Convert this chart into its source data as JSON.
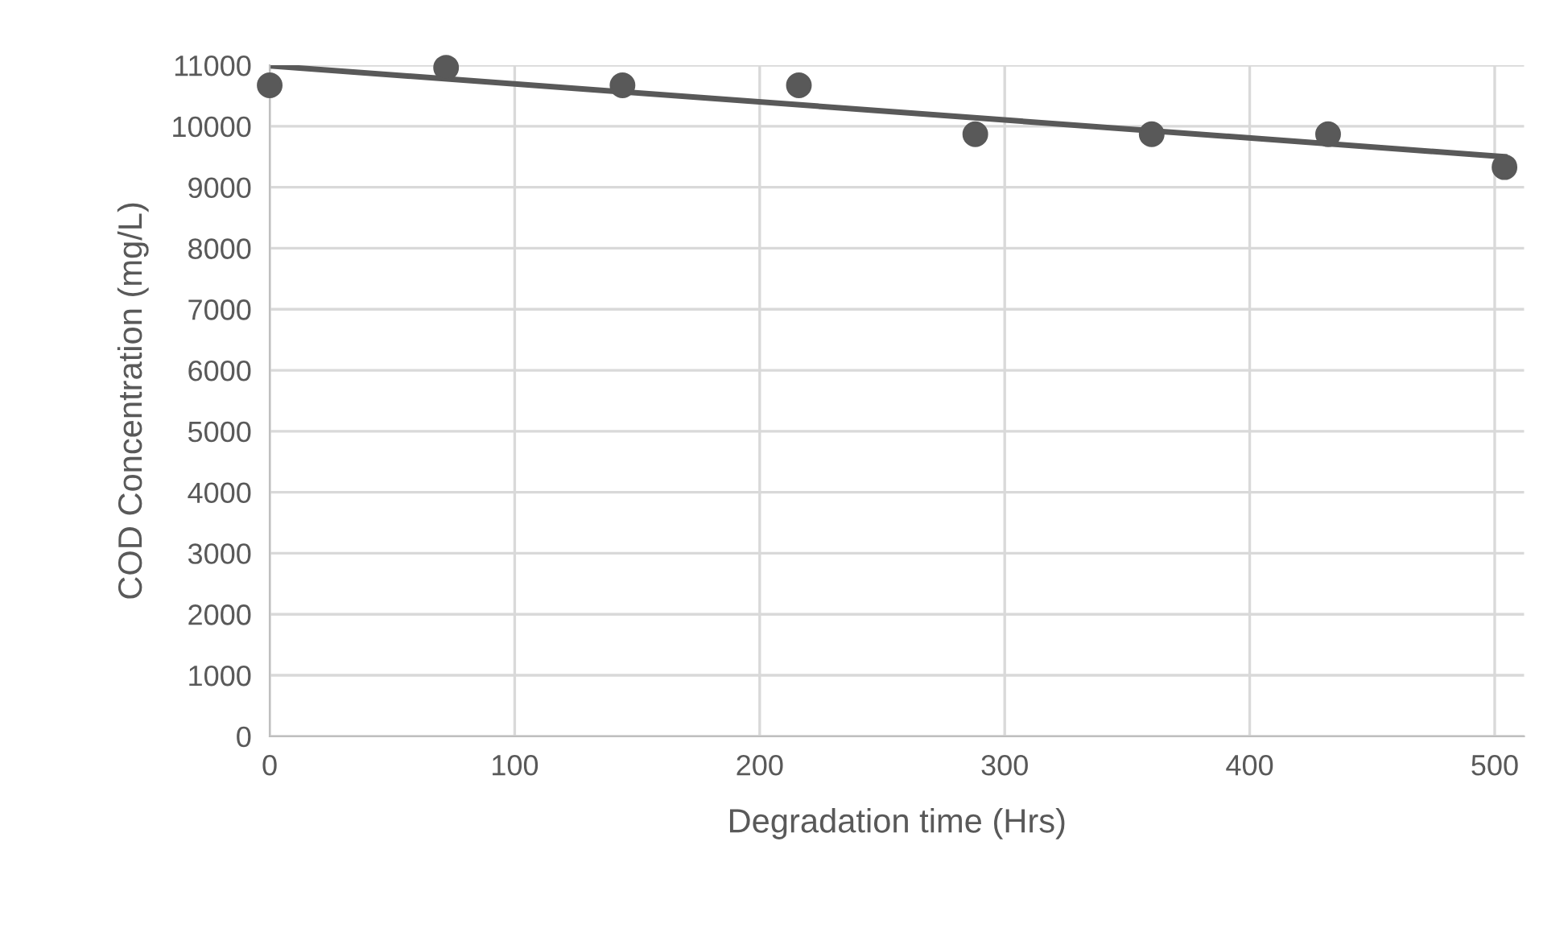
{
  "chart_data": {
    "type": "scatter",
    "xlabel": "Degradation time (Hrs)",
    "ylabel": "COD Concentration (mg/L)",
    "x": [
      0,
      72,
      144,
      216,
      288,
      360,
      432,
      504
    ],
    "series": [
      {
        "color": "#595959",
        "values": [
          10670,
          10960,
          10670,
          10670,
          9870,
          9870,
          9870,
          9330
        ],
        "marker": "circle"
      },
      {
        "type": "line",
        "color": "#595959",
        "x": [
          0,
          504
        ],
        "values": [
          10990,
          9500
        ],
        "marker": "none"
      }
    ],
    "xlim": [
      0,
      512
    ],
    "xticks": [
      0,
      100,
      200,
      300,
      400,
      500
    ],
    "ylim": [
      0,
      11000
    ],
    "yticks": [
      0,
      1000,
      2000,
      3000,
      4000,
      5000,
      6000,
      7000,
      8000,
      9000,
      10000,
      11000
    ],
    "grid": true,
    "legend": false
  }
}
